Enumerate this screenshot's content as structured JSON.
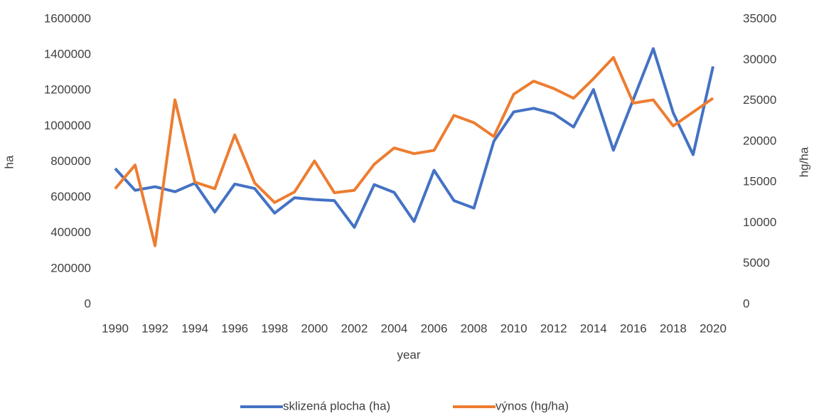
{
  "chart_data": {
    "type": "line",
    "x_label": "year",
    "y_label": "ha",
    "y2_label": "hg/ha",
    "x": [
      1990,
      1991,
      1992,
      1993,
      1994,
      1995,
      1996,
      1997,
      1998,
      1999,
      2000,
      2001,
      2002,
      2003,
      2004,
      2005,
      2006,
      2007,
      2008,
      2009,
      2010,
      2011,
      2012,
      2013,
      2014,
      2015,
      2016,
      2017,
      2018,
      2019,
      2020
    ],
    "xlim": [
      1990,
      2020
    ],
    "xticks": [
      1990,
      1992,
      1994,
      1996,
      1998,
      2000,
      2002,
      2004,
      2006,
      2008,
      2010,
      2012,
      2014,
      2016,
      2018,
      2020
    ],
    "ylim": [
      0,
      1600000
    ],
    "yticks": [
      0,
      200000,
      400000,
      600000,
      800000,
      1000000,
      1200000,
      1400000,
      1600000
    ],
    "y2lim": [
      0,
      35000
    ],
    "y2ticks": [
      0,
      5000,
      10000,
      15000,
      20000,
      25000,
      30000,
      35000
    ],
    "grid": false,
    "legend": "bottom",
    "series": [
      {
        "name": "sklizená plocha (ha)",
        "color": "#4472c4",
        "values": [
          762000,
          640000,
          660000,
          632000,
          680000,
          518000,
          675000,
          650000,
          512000,
          598000,
          588000,
          582000,
          432000,
          672000,
          628000,
          465000,
          752000,
          582000,
          540000,
          915000,
          1080000,
          1100000,
          1070000,
          995000,
          1205000,
          865000,
          1150000,
          1435000,
          1075000,
          840000,
          1335000
        ]
      },
      {
        "name": "výnos (hg/ha)",
        "color": "#ed7d31",
        "axis": "y2",
        "values": [
          14200,
          17100,
          7200,
          25100,
          15000,
          14200,
          20800,
          14900,
          12500,
          13800,
          17600,
          13700,
          14000,
          17200,
          19200,
          18500,
          18900,
          23200,
          22300,
          20600,
          25800,
          27400,
          26500,
          25300,
          27700,
          30300,
          24700,
          25100,
          21900,
          23600,
          25300
        ]
      }
    ]
  }
}
